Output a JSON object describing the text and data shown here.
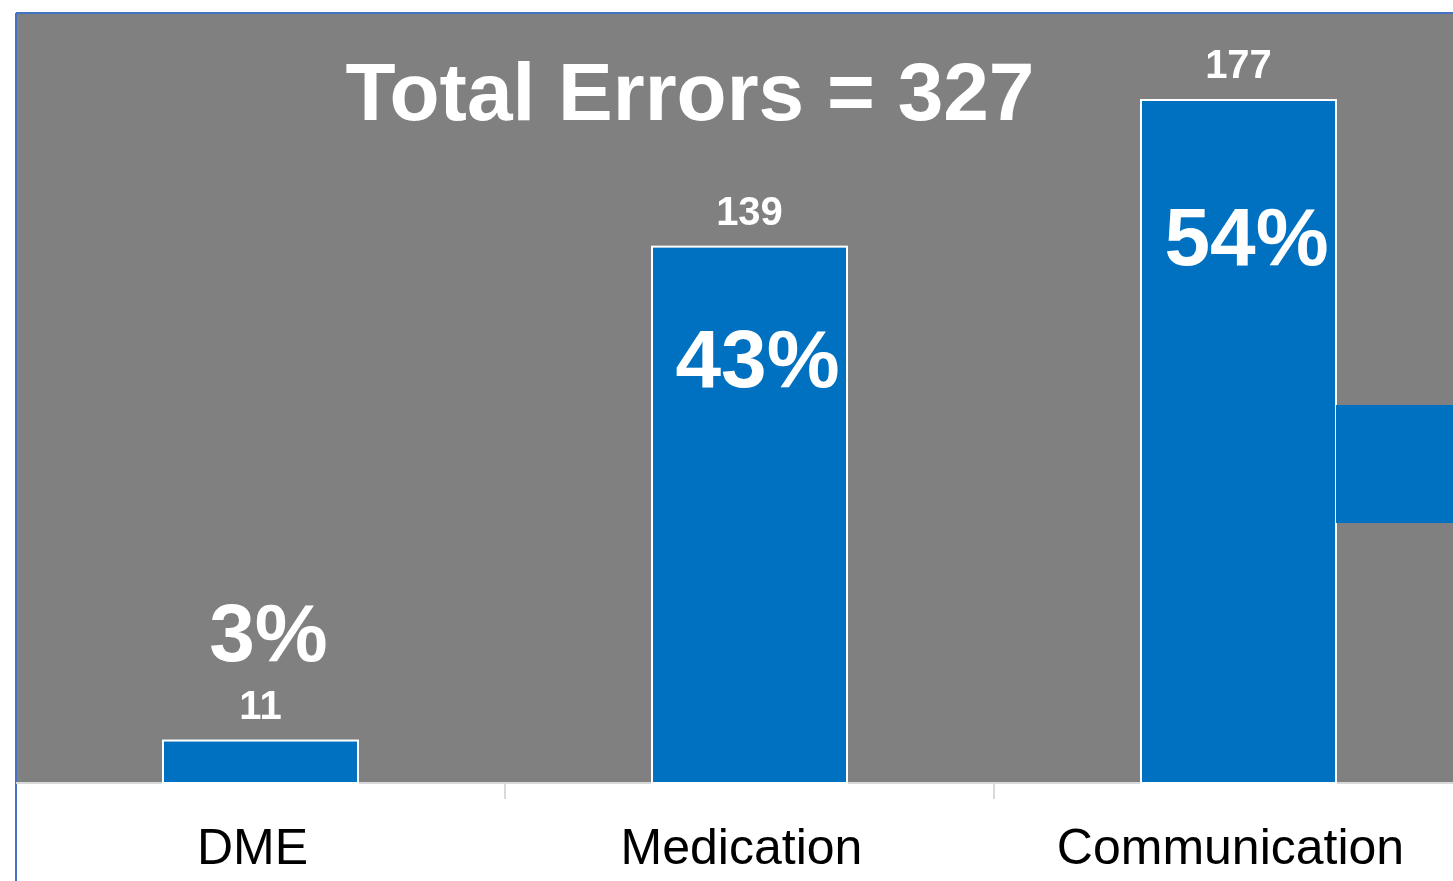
{
  "chart_data": {
    "type": "bar",
    "title": "Total Errors = 327",
    "categories": [
      "DME",
      "Medication",
      "Communication"
    ],
    "values": [
      11,
      139,
      177
    ],
    "color": "#0070c0",
    "data_labels": true,
    "annotations": [
      "3%",
      "43%",
      "54%"
    ]
  }
}
